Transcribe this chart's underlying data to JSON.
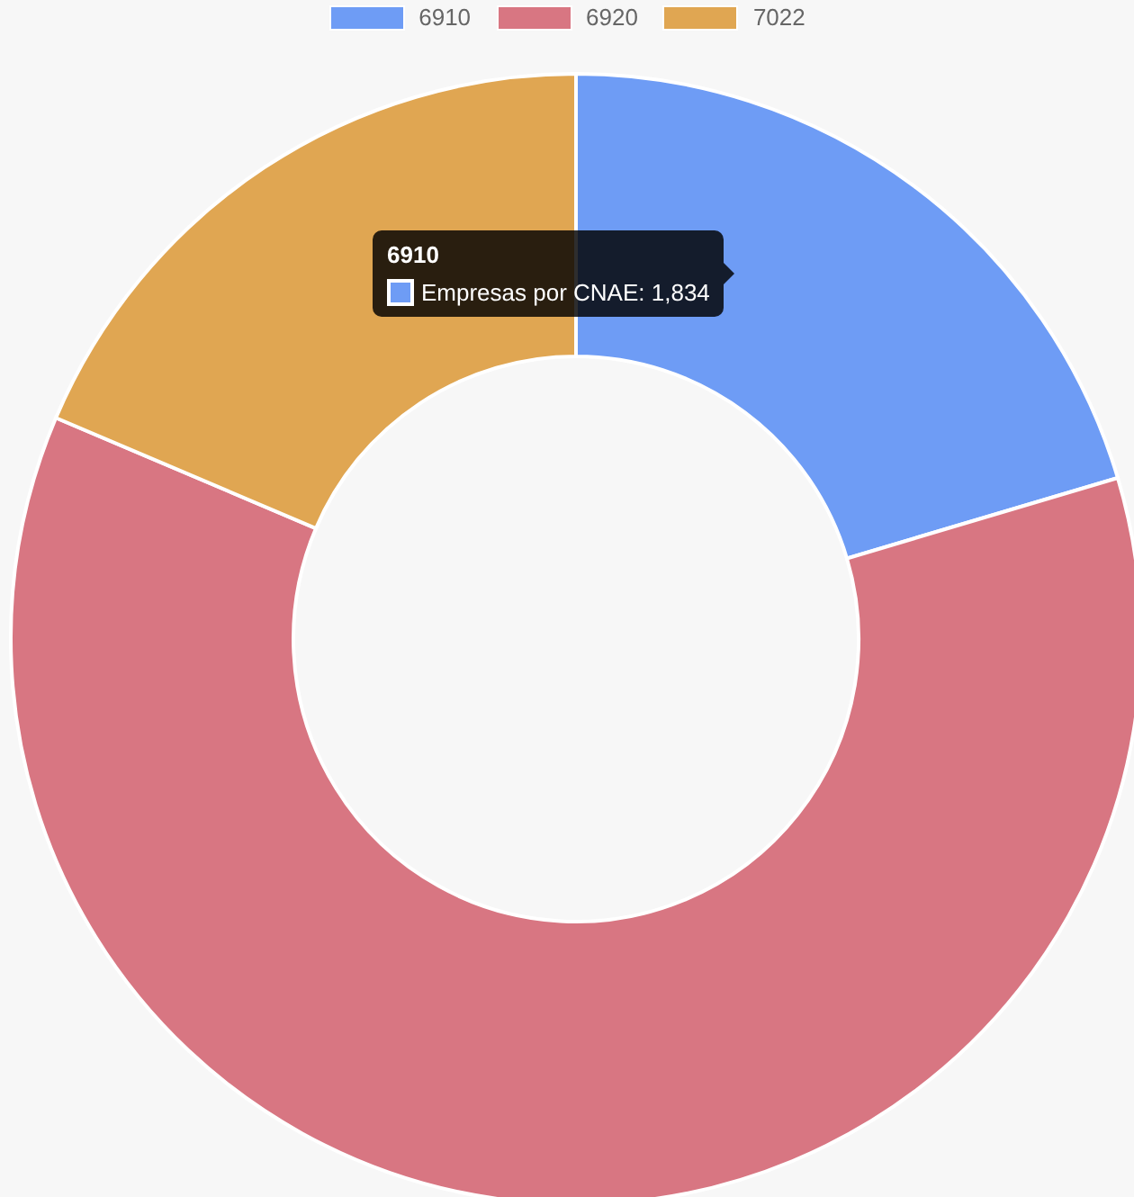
{
  "chart_data": {
    "type": "donut",
    "categories": [
      "6910",
      "6920",
      "7022"
    ],
    "values": [
      20.4,
      61,
      18.6
    ],
    "colors": [
      "#6e9cf5",
      "#d87682",
      "#e0a652"
    ],
    "legend": "top",
    "annotations": [
      "6910",
      "Empresas por CNAE: 1,834"
    ]
  }
}
